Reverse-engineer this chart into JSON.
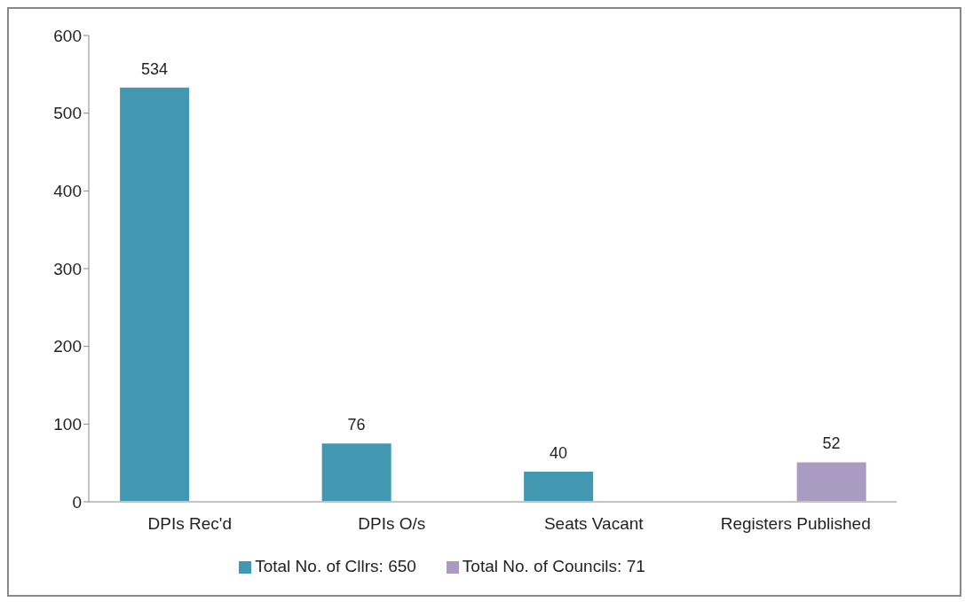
{
  "chart_data": {
    "type": "bar",
    "categories": [
      "DPIs Rec'd",
      "DPIs O/s",
      "Seats Vacant",
      "Registers Published"
    ],
    "series": [
      {
        "name": "Total No. of Cllrs:  650",
        "color": "#4198b0",
        "values": [
          534,
          76,
          40,
          null
        ]
      },
      {
        "name": "Total No. of Councils: 71",
        "color": "#a99bc1",
        "values": [
          null,
          null,
          null,
          52
        ]
      }
    ],
    "ylim": [
      0,
      600
    ],
    "yticks": [
      0,
      100,
      200,
      300,
      400,
      500,
      600
    ],
    "data_labels": true,
    "legend": "bottom"
  }
}
